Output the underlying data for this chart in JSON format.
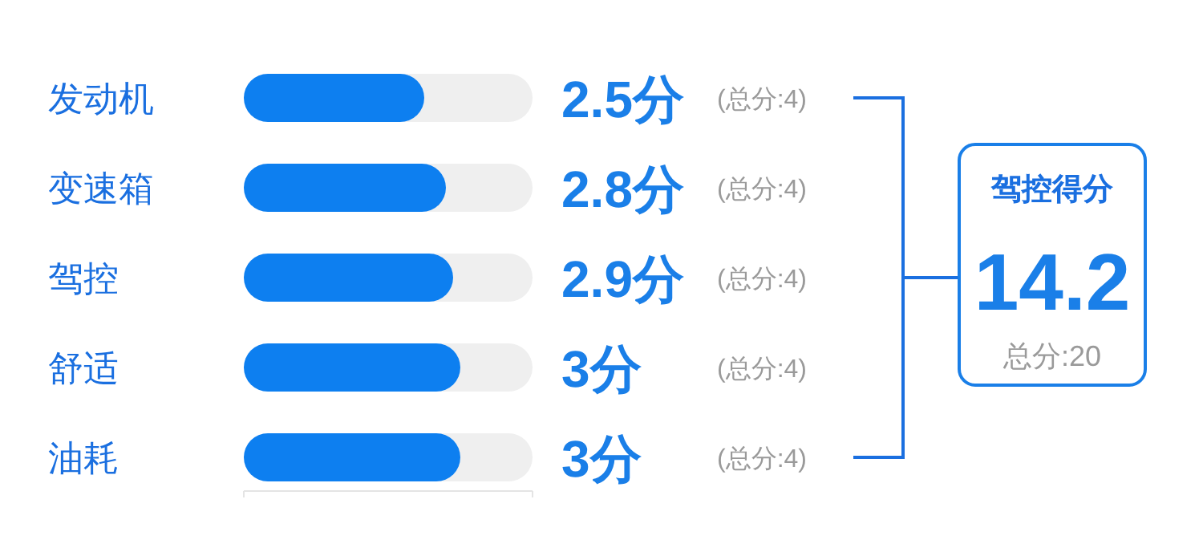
{
  "chart_data": {
    "type": "bar",
    "orientation": "horizontal",
    "categories": [
      "发动机",
      "变速箱",
      "驾控",
      "舒适",
      "油耗"
    ],
    "values": [
      2.5,
      2.8,
      2.9,
      3,
      3
    ],
    "value_labels": [
      "2.5分",
      "2.8分",
      "2.9分",
      "3分",
      "3分"
    ],
    "color": "#0d7ff0",
    "xlim": [
      0,
      4
    ],
    "xticks": [
      {
        "value": 0,
        "label": null
      },
      {
        "value": 4,
        "label": null
      }
    ],
    "tick_labels": "y",
    "annotations": [
      "(总分:4)",
      "(总分:4)",
      "(总分:4)",
      "(总分:4)",
      "(总分:4)",
      "驾控得分",
      "14.2",
      "总分:20"
    ]
  }
}
